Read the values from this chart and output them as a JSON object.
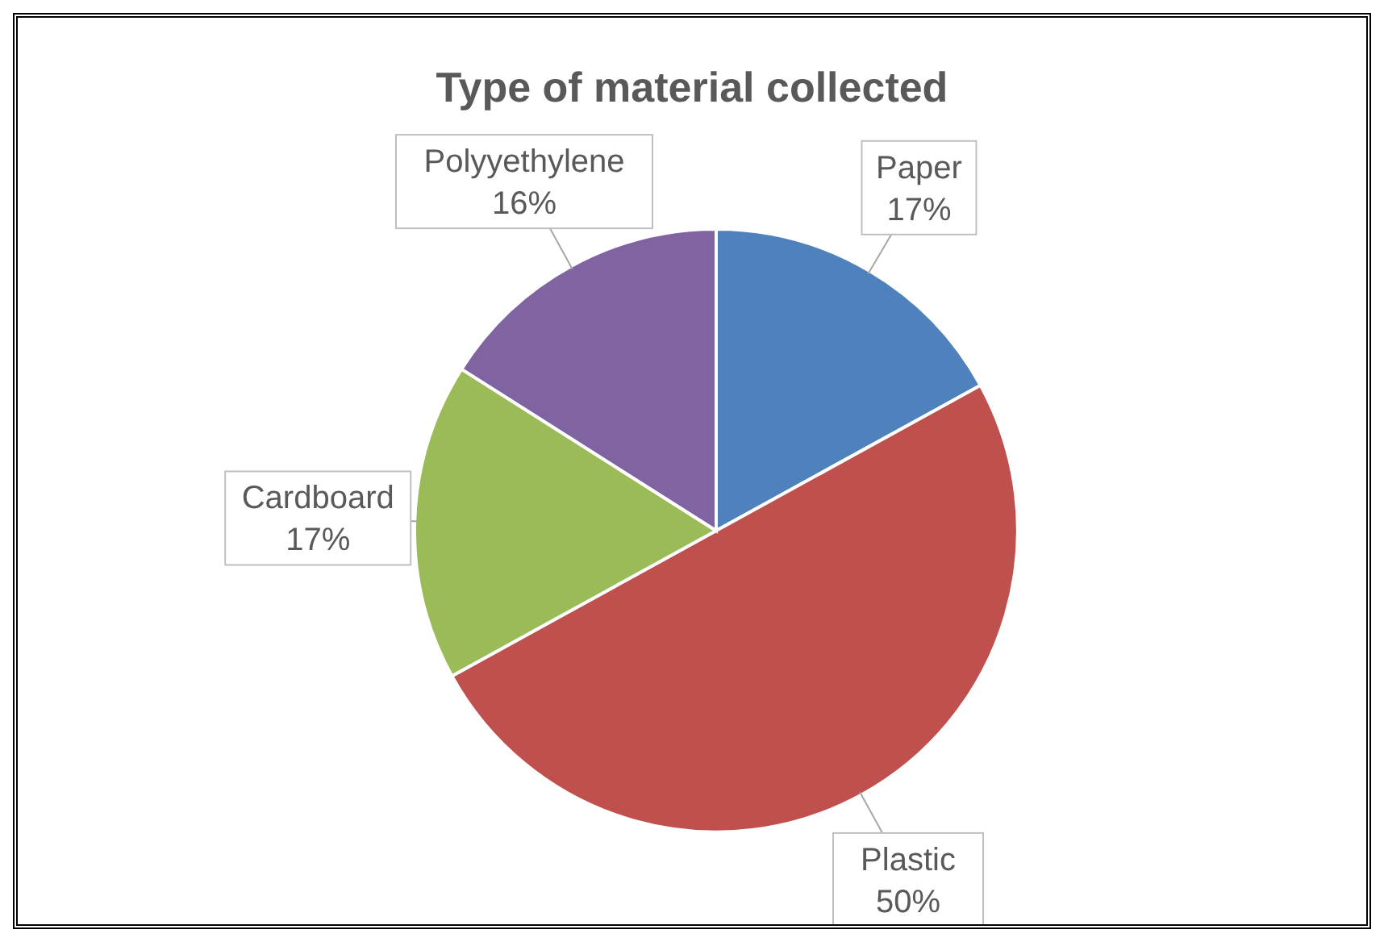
{
  "chart_data": {
    "type": "pie",
    "title": "Type of material collected",
    "categories": [
      "Paper",
      "Plastic",
      "Cardboard",
      "Polyyethylene"
    ],
    "values": [
      17,
      50,
      17,
      16
    ],
    "value_labels": [
      "17%",
      "50%",
      "17%",
      "16%"
    ],
    "colors": [
      "#4f81bd",
      "#c0504d",
      "#9bbb59",
      "#8064a2"
    ]
  }
}
